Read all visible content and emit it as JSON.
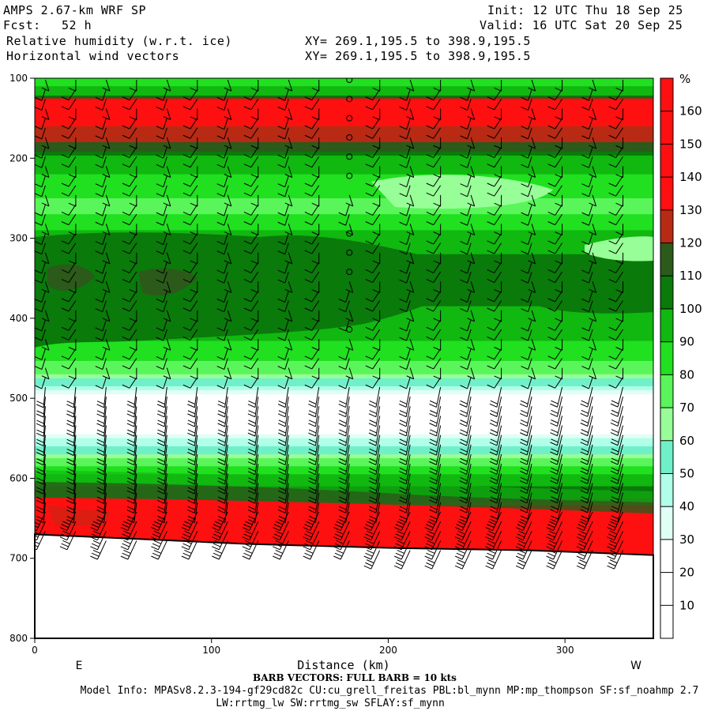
{
  "header": {
    "model": "AMPS 2.67-km WRF SP",
    "forecast_label": "Fcst:",
    "forecast_value": "52 h",
    "field1": "Relative humidity (w.r.t. ice)",
    "field2": "Horizontal wind vectors",
    "init": "Init: 12 UTC Thu 18 Sep 25",
    "valid": "Valid: 16 UTC Sat 20 Sep 25",
    "xy1": "XY= 269.1,195.5 to 398.9,195.5",
    "xy2": "XY= 269.1,195.5 to 398.9,195.5"
  },
  "footer": {
    "xlabel": "Distance (km)",
    "left_dir": "E",
    "right_dir": "W",
    "barb_note": "BARB VECTORS:  FULL BARB = 10 kts",
    "model_info": "Model Info: MPASv8.2.3-194-gf29cd82c CU:cu_grell_freitas PBL:bl_mynn MP:mp_thompson SF:sf_noahmp 2.7",
    "model_info2": "LW:rrtmg_lw SW:rrtmg_sw SFLAY:sf_mynn"
  },
  "chart_data": {
    "type": "heatmap",
    "title": "Relative humidity (w.r.t. ice)",
    "overlay": "Horizontal wind vectors (barbs)",
    "xlabel": "Distance (km)",
    "ylabel": "",
    "xlim": [
      0,
      350
    ],
    "ylim": [
      800,
      100
    ],
    "x_ticks": [
      0,
      100,
      200,
      300
    ],
    "y_ticks": [
      100,
      200,
      300,
      400,
      500,
      600,
      700,
      800
    ],
    "colorbar": {
      "unit": "%",
      "levels": [
        10,
        20,
        30,
        40,
        50,
        60,
        70,
        80,
        90,
        100,
        110,
        120,
        130,
        140,
        150,
        160
      ],
      "colors": [
        "#ffffff",
        "#ffffff",
        "#ffffff",
        "#e0fff5",
        "#b0ffe8",
        "#70f0c8",
        "#98ff98",
        "#5af55a",
        "#20e020",
        "#10b810",
        "#0a7a0a",
        "#2b5a1a",
        "#b82a14",
        "#ff1010",
        "#ff1010",
        "#ff1010",
        "#ff1010"
      ]
    },
    "profile": [
      {
        "p": 100,
        "rh": 85
      },
      {
        "p": 120,
        "rh": 95
      },
      {
        "p": 130,
        "rh": 150
      },
      {
        "p": 190,
        "rh": 112
      },
      {
        "p": 200,
        "rh": 95
      },
      {
        "p": 260,
        "rh": 78
      },
      {
        "p": 320,
        "rh": 100
      },
      {
        "p": 350,
        "rh": 104
      },
      {
        "p": 420,
        "rh": 95
      },
      {
        "p": 470,
        "rh": 70
      },
      {
        "p": 500,
        "rh": 25
      },
      {
        "p": 530,
        "rh": 15
      },
      {
        "p": 560,
        "rh": 50
      },
      {
        "p": 590,
        "rh": 85
      },
      {
        "p": 620,
        "rh": 105
      },
      {
        "p": 650,
        "rh": 155
      },
      {
        "p": 690,
        "rh": 160
      }
    ],
    "terrain": [
      {
        "x": 0,
        "p": 670
      },
      {
        "x": 60,
        "p": 676
      },
      {
        "x": 120,
        "p": 682
      },
      {
        "x": 200,
        "p": 687
      },
      {
        "x": 280,
        "p": 690
      },
      {
        "x": 350,
        "p": 696
      }
    ]
  }
}
